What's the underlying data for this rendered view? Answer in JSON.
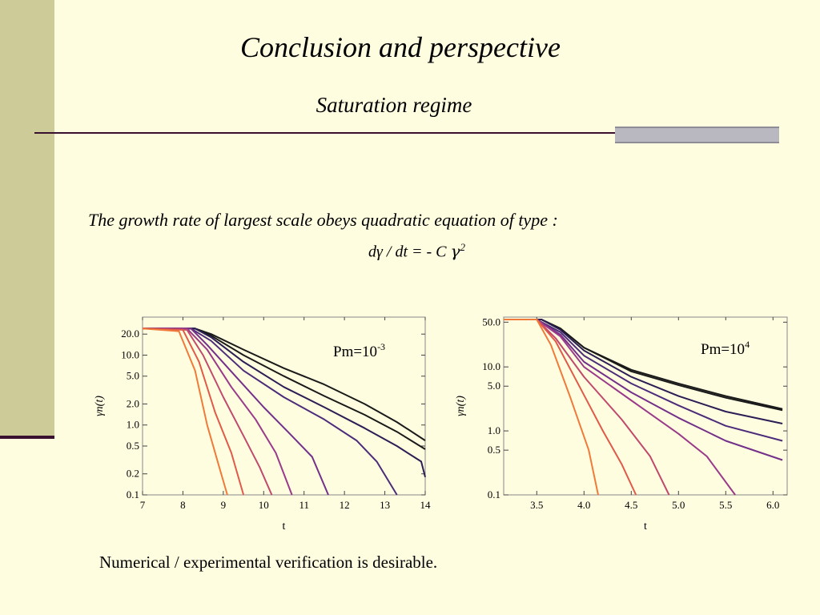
{
  "slide": {
    "title": "Conclusion and perspective",
    "subtitle": "Saturation regime",
    "statement": "The growth rate of largest scale obeys quadratic equation of type  :",
    "equation": {
      "lhs": "dγ / dt = - C ",
      "gamma": "γ",
      "power": "2"
    },
    "footer": "Numerical / experimental verification is desirable."
  },
  "chart_data": [
    {
      "type": "line",
      "annotation": {
        "base": "Pm=10",
        "exponent": "-3"
      },
      "xlabel": "t",
      "ylabel": "γn(t)",
      "xlim": [
        7,
        14
      ],
      "ylim": [
        0.1,
        35
      ],
      "y_scale": "log",
      "xticks": [
        "7",
        "8",
        "9",
        "10",
        "11",
        "12",
        "13",
        "14"
      ],
      "yticks": [
        "0.1",
        "0.2",
        "0.5",
        "1.0",
        "2.0",
        "5.0",
        "10.0",
        "20.0"
      ],
      "series": [
        {
          "color": "#1a1a1a",
          "x": [
            7.0,
            8.3,
            8.7,
            9.5,
            10.5,
            11.5,
            12.5,
            13.3,
            14.0
          ],
          "y": [
            24,
            24,
            20,
            12,
            6.5,
            3.8,
            2.0,
            1.1,
            0.6
          ]
        },
        {
          "color": "#1a1a1a",
          "x": [
            7.0,
            8.3,
            8.7,
            9.5,
            10.5,
            11.5,
            12.5,
            13.3,
            14.0
          ],
          "y": [
            24,
            24,
            19,
            10,
            5.0,
            2.6,
            1.4,
            0.8,
            0.45
          ]
        },
        {
          "color": "#2a1e55",
          "x": [
            7.0,
            8.3,
            8.7,
            9.5,
            10.5,
            11.5,
            12.5,
            13.3,
            13.9,
            14.0
          ],
          "y": [
            24,
            24,
            18,
            8,
            3.5,
            1.8,
            0.9,
            0.5,
            0.3,
            0.18
          ]
        },
        {
          "color": "#4c2c7a",
          "x": [
            7.0,
            8.2,
            8.7,
            9.5,
            10.5,
            11.5,
            12.3,
            12.8,
            13.3
          ],
          "y": [
            24,
            24,
            16,
            6,
            2.5,
            1.2,
            0.6,
            0.3,
            0.1
          ]
        },
        {
          "color": "#73308a",
          "x": [
            7.0,
            8.2,
            8.6,
            9.3,
            10.0,
            10.6,
            11.2,
            11.6
          ],
          "y": [
            24,
            24,
            14,
            5.0,
            1.8,
            0.8,
            0.35,
            0.1
          ]
        },
        {
          "color": "#9a3a8a",
          "x": [
            7.0,
            8.1,
            8.6,
            9.2,
            9.8,
            10.3,
            10.7
          ],
          "y": [
            24,
            24,
            12,
            3.5,
            1.2,
            0.4,
            0.1
          ]
        },
        {
          "color": "#c04a6e",
          "x": [
            7.0,
            8.1,
            8.5,
            9.0,
            9.5,
            9.9,
            10.2
          ],
          "y": [
            24,
            23,
            10,
            2.5,
            0.7,
            0.25,
            0.1
          ]
        },
        {
          "color": "#e05a4a",
          "x": [
            7.0,
            8.0,
            8.4,
            8.8,
            9.2,
            9.5
          ],
          "y": [
            24,
            23,
            8,
            1.5,
            0.4,
            0.1
          ]
        },
        {
          "color": "#f07a3a",
          "x": [
            7.0,
            7.9,
            8.3,
            8.6,
            8.9,
            9.1
          ],
          "y": [
            24,
            22,
            6,
            1.0,
            0.25,
            0.1
          ]
        }
      ]
    },
    {
      "type": "line",
      "annotation": {
        "base": "Pm=10",
        "exponent": "4"
      },
      "xlabel": "t",
      "ylabel": "γn(t)",
      "xlim": [
        3.15,
        6.15
      ],
      "ylim": [
        0.1,
        60
      ],
      "y_scale": "log",
      "xticks": [
        "3.5",
        "4.0",
        "4.5",
        "5.0",
        "5.5",
        "6.0"
      ],
      "yticks": [
        "0.1",
        "0.5",
        "1.0",
        "5.0",
        "10.0",
        "50.0"
      ],
      "series": [
        {
          "color": "#1a1a1a",
          "x": [
            3.15,
            3.55,
            3.75,
            4.0,
            4.5,
            5.0,
            5.5,
            6.1
          ],
          "y": [
            55,
            55,
            40,
            20,
            9,
            5.5,
            3.5,
            2.2
          ]
        },
        {
          "color": "#1a1a1a",
          "x": [
            3.15,
            3.55,
            3.75,
            4.0,
            4.5,
            5.0,
            5.5,
            6.1
          ],
          "y": [
            55,
            55,
            40,
            20,
            8.5,
            5.2,
            3.3,
            2.1
          ]
        },
        {
          "color": "#2a1e55",
          "x": [
            3.15,
            3.55,
            3.75,
            4.0,
            4.5,
            5.0,
            5.5,
            6.1
          ],
          "y": [
            55,
            55,
            38,
            18,
            7.0,
            3.5,
            2.0,
            1.3
          ]
        },
        {
          "color": "#4c2c7a",
          "x": [
            3.15,
            3.5,
            3.75,
            4.0,
            4.5,
            5.0,
            5.5,
            6.1
          ],
          "y": [
            55,
            55,
            35,
            15,
            5.5,
            2.5,
            1.2,
            0.7
          ]
        },
        {
          "color": "#73308a",
          "x": [
            3.15,
            3.5,
            3.75,
            4.0,
            4.5,
            5.0,
            5.5,
            6.1
          ],
          "y": [
            55,
            55,
            32,
            12,
            4.0,
            1.6,
            0.7,
            0.35
          ]
        },
        {
          "color": "#9a3a8a",
          "x": [
            3.15,
            3.5,
            3.75,
            4.0,
            4.5,
            5.0,
            5.3,
            5.6
          ],
          "y": [
            55,
            55,
            30,
            10,
            3.0,
            0.9,
            0.4,
            0.1
          ]
        },
        {
          "color": "#c04a6e",
          "x": [
            3.15,
            3.5,
            3.7,
            4.0,
            4.4,
            4.7,
            4.9
          ],
          "y": [
            55,
            55,
            28,
            7,
            1.5,
            0.4,
            0.1
          ]
        },
        {
          "color": "#e05a4a",
          "x": [
            3.15,
            3.5,
            3.7,
            3.95,
            4.2,
            4.4,
            4.55
          ],
          "y": [
            55,
            55,
            25,
            5,
            1.0,
            0.3,
            0.1
          ]
        },
        {
          "color": "#f07a3a",
          "x": [
            3.15,
            3.5,
            3.65,
            3.85,
            4.05,
            4.15
          ],
          "y": [
            55,
            55,
            22,
            3.5,
            0.5,
            0.1
          ]
        }
      ]
    }
  ]
}
